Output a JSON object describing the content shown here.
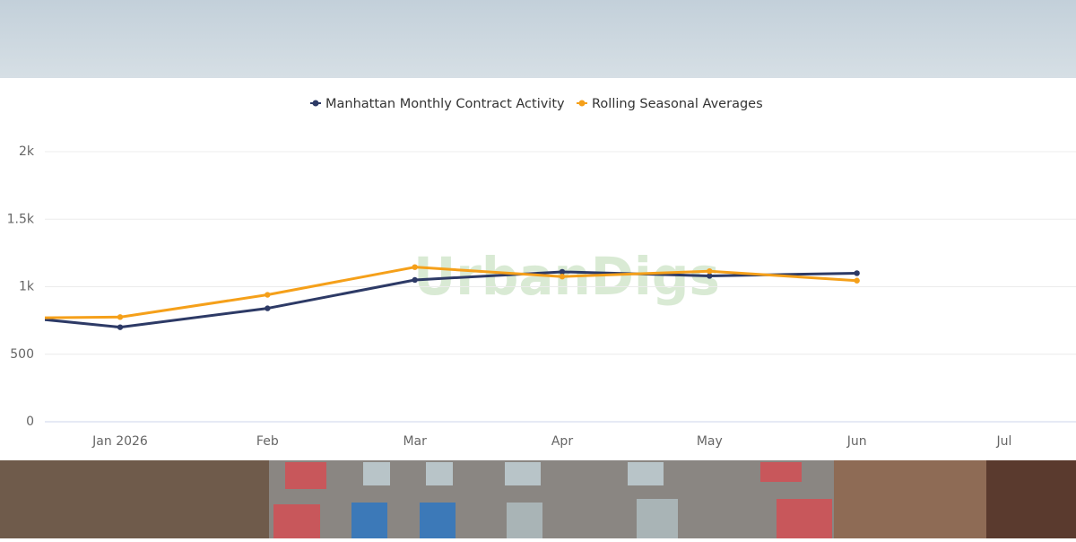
{
  "watermark": "UrbanDigs",
  "chart_data": {
    "type": "line",
    "categories": [
      null,
      "Jan 2026",
      "Feb",
      "Mar",
      "Apr",
      "May",
      "Jun",
      "Jul"
    ],
    "series": [
      {
        "name": "Manhattan Monthly Contract Activity",
        "color": "#2d3a66",
        "values": [
          810,
          700,
          840,
          1050,
          1110,
          1080,
          1100,
          null
        ]
      },
      {
        "name": "Rolling Seasonal Averages",
        "color": "#f5a01a",
        "values": [
          765,
          775,
          940,
          1145,
          1075,
          1115,
          1045,
          null
        ]
      }
    ],
    "ylim": [
      0,
      2000
    ],
    "yticks": [
      0,
      500,
      {
        "value": 1000,
        "label": "1k"
      },
      {
        "value": 1500,
        "label": "1.5k"
      },
      {
        "value": 2000,
        "label": "2k"
      }
    ],
    "grid": true,
    "legend": "top"
  }
}
